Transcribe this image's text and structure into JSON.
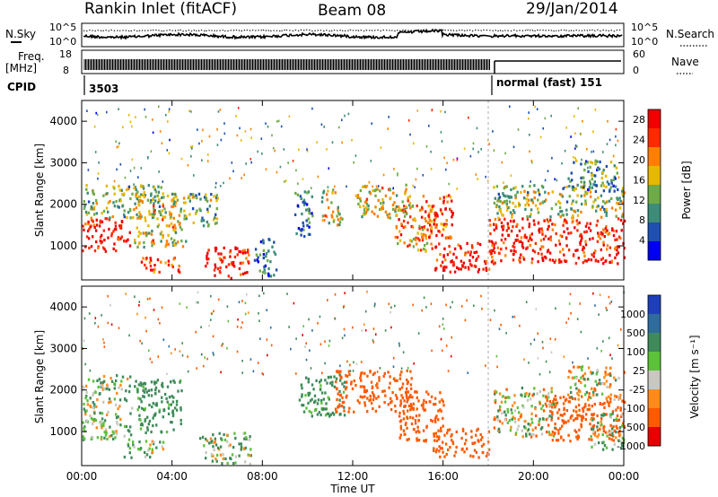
{
  "header": {
    "station": "Rankin Inlet (fitACF)",
    "beam": "Beam 08",
    "date": "29/Jan/2014"
  },
  "noise_panel": {
    "left_label": "N.Sky",
    "right_label": "N.Search",
    "right_line_style": "dotted",
    "tick_top": "10^5",
    "tick_bottom": "10^0"
  },
  "freq_panel": {
    "left_label_line1": "Freq.",
    "left_label_line2": "[MHz]",
    "left_ticks": [
      "18",
      "8"
    ],
    "right_label": "Nave",
    "right_ticks": [
      "60",
      "0"
    ]
  },
  "cpid_row": {
    "label": "CPID",
    "first_mode": "3503",
    "second_mode": "normal (fast) 151"
  },
  "x_axis": {
    "label": "Time UT",
    "ticks": [
      "00:00",
      "04:00",
      "08:00",
      "12:00",
      "16:00",
      "20:00",
      "00:00"
    ],
    "range_hours": [
      0,
      24
    ]
  },
  "chart_data": [
    {
      "type": "heatmap",
      "parameter": "Power",
      "ylabel": "Slant Range [km]",
      "ylim": [
        180,
        4500
      ],
      "y_ticks": [
        "1000",
        "2000",
        "3000",
        "4000"
      ],
      "colorbar": {
        "label": "Power [dB]",
        "ticks": [
          "4",
          "8",
          "12",
          "16",
          "20",
          "24",
          "28"
        ],
        "range": [
          0,
          30
        ],
        "colors": [
          "#0000ee",
          "#1f4fb0",
          "#3c8c78",
          "#6eaa46",
          "#e6b800",
          "#ff8000",
          "#ff2a00",
          "#ee0000"
        ]
      },
      "regions": [
        {
          "t": [
            0.0,
            2.1
          ],
          "r": [
            900,
            1700
          ],
          "value": 28
        },
        {
          "t": [
            0.0,
            3.6
          ],
          "r": [
            1700,
            2500
          ],
          "value": 14
        },
        {
          "t": [
            2.3,
            4.6
          ],
          "r": [
            1000,
            2300
          ],
          "value": 16
        },
        {
          "t": [
            2.6,
            4.3
          ],
          "r": [
            350,
            750
          ],
          "value": 24
        },
        {
          "t": [
            5.3,
            7.4
          ],
          "r": [
            250,
            1000
          ],
          "value": 28
        },
        {
          "t": [
            4.5,
            6.0
          ],
          "r": [
            1500,
            2300
          ],
          "value": 12
        },
        {
          "t": [
            7.6,
            8.6
          ],
          "r": [
            300,
            1200
          ],
          "value": 8
        },
        {
          "t": [
            9.4,
            10.2
          ],
          "r": [
            1200,
            2400
          ],
          "value": 8
        },
        {
          "t": [
            10.6,
            11.5
          ],
          "r": [
            1500,
            2400
          ],
          "value": 16
        },
        {
          "t": [
            12.1,
            14.6
          ],
          "r": [
            1700,
            2500
          ],
          "value": 16
        },
        {
          "t": [
            13.8,
            15.7
          ],
          "r": [
            900,
            2000
          ],
          "value": 20
        },
        {
          "t": [
            15.5,
            18.0
          ],
          "r": [
            400,
            1100
          ],
          "value": 28
        },
        {
          "t": [
            15.0,
            16.4
          ],
          "r": [
            1200,
            2300
          ],
          "value": 24
        },
        {
          "t": [
            18.0,
            24.0
          ],
          "r": [
            600,
            1700
          ],
          "value": 26
        },
        {
          "t": [
            18.2,
            24.0
          ],
          "r": [
            1700,
            2500
          ],
          "value": 14
        },
        {
          "t": [
            21.5,
            23.7
          ],
          "r": [
            2300,
            3100
          ],
          "value": 10
        }
      ]
    },
    {
      "type": "heatmap",
      "parameter": "Velocity",
      "ylabel": "Slant Range [km]",
      "ylim": [
        180,
        4500
      ],
      "y_ticks": [
        "1000",
        "2000",
        "3000",
        "4000"
      ],
      "colorbar": {
        "label": "Velocity [m s⁻¹]",
        "ticks": [
          "1000",
          "500",
          "100",
          "25",
          "-25",
          "-100",
          "-500",
          "-1000"
        ],
        "colors": [
          "#1f3fb8",
          "#2f6c9e",
          "#3f8a5a",
          "#5cc23a",
          "#c8c8c0",
          "#ff8c1a",
          "#ff5a00",
          "#e60000"
        ]
      },
      "regions": [
        {
          "t": [
            0.0,
            2.2
          ],
          "r": [
            800,
            2400
          ],
          "value": 60
        },
        {
          "t": [
            2.3,
            4.4
          ],
          "r": [
            1000,
            2300
          ],
          "value": 200
        },
        {
          "t": [
            1.8,
            3.6
          ],
          "r": [
            400,
            800
          ],
          "value": 60
        },
        {
          "t": [
            5.2,
            7.5
          ],
          "r": [
            250,
            1000
          ],
          "value": 60
        },
        {
          "t": [
            9.6,
            11.6
          ],
          "r": [
            1400,
            2400
          ],
          "value": 200
        },
        {
          "t": [
            11.2,
            14.6
          ],
          "r": [
            1500,
            2500
          ],
          "value": -300
        },
        {
          "t": [
            14.0,
            16.0
          ],
          "r": [
            800,
            2000
          ],
          "value": -300
        },
        {
          "t": [
            15.5,
            18.0
          ],
          "r": [
            400,
            1100
          ],
          "value": -300
        },
        {
          "t": [
            18.2,
            21.0
          ],
          "r": [
            900,
            2100
          ],
          "value": 0
        },
        {
          "t": [
            20.5,
            24.0
          ],
          "r": [
            800,
            1900
          ],
          "value": -300
        },
        {
          "t": [
            21.5,
            24.0
          ],
          "r": [
            1800,
            2600
          ],
          "value": 0
        },
        {
          "t": [
            22.5,
            24.0
          ],
          "r": [
            600,
            1500
          ],
          "value": 60
        }
      ]
    }
  ]
}
